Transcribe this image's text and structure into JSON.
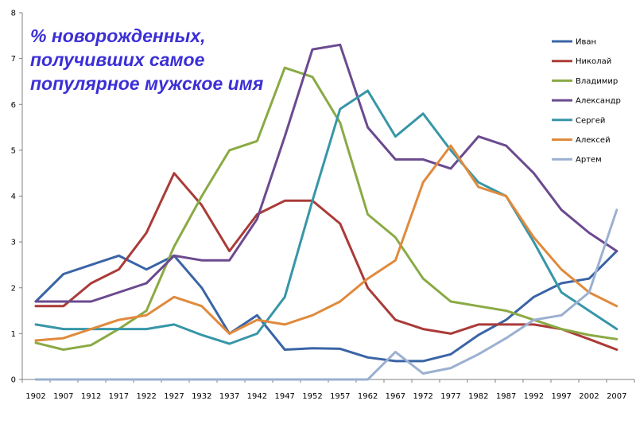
{
  "chart_data": {
    "type": "line",
    "title": "% новорожденных, получивших самое популярное мужское имя",
    "xlabel": "",
    "ylabel": "",
    "ylim": [
      0,
      8
    ],
    "y_ticks": [
      "0",
      "1",
      "2",
      "3",
      "4",
      "5",
      "6",
      "7",
      "8"
    ],
    "grid": false,
    "legend_position": "right",
    "x": [
      "1902",
      "1907",
      "1912",
      "1917",
      "1922",
      "1927",
      "1932",
      "1937",
      "1942",
      "1947",
      "1952",
      "1957",
      "1962",
      "1967",
      "1972",
      "1977",
      "1982",
      "1987",
      "1992",
      "1997",
      "2002",
      "2007"
    ],
    "series": [
      {
        "name": "Иван",
        "color": "#3a64a6",
        "values": [
          1.7,
          2.3,
          2.5,
          2.7,
          2.4,
          2.7,
          2.0,
          1.0,
          1.4,
          0.65,
          0.68,
          0.67,
          0.48,
          0.4,
          0.4,
          0.55,
          0.97,
          1.3,
          1.8,
          2.1,
          2.2,
          2.8
        ]
      },
      {
        "name": "Николай",
        "color": "#aa3b38",
        "values": [
          1.6,
          1.6,
          2.1,
          2.4,
          3.2,
          4.5,
          3.8,
          2.8,
          3.6,
          3.9,
          3.9,
          3.4,
          2.0,
          1.3,
          1.1,
          1.0,
          1.2,
          1.2,
          1.2,
          1.1,
          0.88,
          0.65
        ]
      },
      {
        "name": "Владимир",
        "color": "#8aaa45",
        "values": [
          0.8,
          0.65,
          0.75,
          1.1,
          1.5,
          2.9,
          4.0,
          5.0,
          5.2,
          6.8,
          6.6,
          5.6,
          3.6,
          3.1,
          2.2,
          1.7,
          1.6,
          1.5,
          1.3,
          1.1,
          0.97,
          0.88
        ]
      },
      {
        "name": "Александр",
        "color": "#6b4a8f",
        "values": [
          1.7,
          1.7,
          1.7,
          1.9,
          2.1,
          2.7,
          2.6,
          2.6,
          3.5,
          5.3,
          7.2,
          7.3,
          5.5,
          4.8,
          4.8,
          4.6,
          5.3,
          5.1,
          4.5,
          3.7,
          3.2,
          2.8
        ]
      },
      {
        "name": "Сергей",
        "color": "#3796a8",
        "values": [
          1.2,
          1.1,
          1.1,
          1.1,
          1.1,
          1.2,
          0.97,
          0.78,
          1.0,
          1.8,
          3.9,
          5.9,
          6.3,
          5.3,
          5.8,
          5.0,
          4.3,
          4.0,
          3.0,
          1.9,
          1.5,
          1.1
        ]
      },
      {
        "name": "Алексей",
        "color": "#e08a3c",
        "values": [
          0.85,
          0.9,
          1.1,
          1.3,
          1.4,
          1.8,
          1.6,
          1.0,
          1.3,
          1.2,
          1.4,
          1.7,
          2.2,
          2.6,
          4.3,
          5.1,
          4.2,
          4.0,
          3.1,
          2.4,
          1.9,
          1.6
        ]
      },
      {
        "name": "Артем",
        "color": "#9bb0d1",
        "values": [
          0,
          0,
          0,
          0,
          0,
          0,
          0,
          0,
          0,
          0,
          0,
          0,
          0,
          0.6,
          0.13,
          0.25,
          0.55,
          0.9,
          1.3,
          1.4,
          1.9,
          3.7
        ]
      }
    ]
  }
}
